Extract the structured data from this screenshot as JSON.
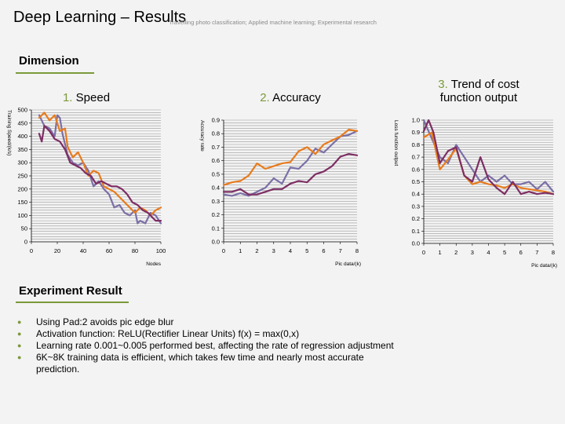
{
  "header": {
    "title": "Deep Learning – Results",
    "subtitle": "Travelling photo classification; Applied machine learning; Experimental research"
  },
  "sections": {
    "dimension": "Dimension",
    "experiment": "Experiment Result"
  },
  "chart_titles": [
    {
      "num": "1.",
      "text": "Speed"
    },
    {
      "num": "2.",
      "text": "Accuracy"
    },
    {
      "num": "3.",
      "text": "Trend of cost function output"
    }
  ],
  "bullets": [
    "Using Pad:2 avoids pic edge blur",
    "Activation function: ReLU(Rectifier Linear Units) f(x) = max(0,x)",
    "Learning rate 0.001~0.005 performed best, affecting the rate of regression adjustment",
    "6K~8K training data is efficient, which takes few time and nearly most accurate prediction."
  ],
  "colors": {
    "series_1": "#7b6fa6",
    "series_2": "#e87b1c",
    "series_3": "#7d2d63",
    "accent": "#7a9a3a"
  },
  "chart_data": [
    {
      "type": "line",
      "title": "Speed",
      "xlabel": "Nodes",
      "ylabel": "Training Speed/(k/s)",
      "xlim": [
        0,
        100
      ],
      "ylim": [
        0,
        500
      ],
      "xticks": [
        0,
        20,
        40,
        60,
        80,
        100
      ],
      "yticks": [
        0,
        50,
        100,
        150,
        200,
        250,
        300,
        350,
        400,
        450,
        500
      ],
      "grid": true,
      "series": [
        {
          "values": [
            [
              6,
              480
            ],
            [
              10,
              440
            ],
            [
              14,
              430
            ],
            [
              18,
              400
            ],
            [
              20,
              480
            ],
            [
              22,
              470
            ],
            [
              24,
              410
            ],
            [
              28,
              330
            ],
            [
              32,
              300
            ],
            [
              36,
              290
            ],
            [
              40,
              300
            ],
            [
              44,
              270
            ],
            [
              48,
              210
            ],
            [
              52,
              230
            ],
            [
              56,
              200
            ],
            [
              60,
              180
            ],
            [
              64,
              130
            ],
            [
              68,
              140
            ],
            [
              72,
              110
            ],
            [
              76,
              100
            ],
            [
              80,
              120
            ],
            [
              82,
              70
            ],
            [
              84,
              80
            ],
            [
              88,
              70
            ],
            [
              92,
              110
            ],
            [
              96,
              100
            ],
            [
              100,
              70
            ]
          ]
        },
        {
          "values": [
            [
              6,
              470
            ],
            [
              10,
              490
            ],
            [
              14,
              460
            ],
            [
              18,
              480
            ],
            [
              22,
              420
            ],
            [
              26,
              430
            ],
            [
              28,
              360
            ],
            [
              32,
              320
            ],
            [
              36,
              340
            ],
            [
              40,
              300
            ],
            [
              44,
              250
            ],
            [
              48,
              270
            ],
            [
              52,
              260
            ],
            [
              56,
              210
            ],
            [
              60,
              200
            ],
            [
              64,
              190
            ],
            [
              68,
              170
            ],
            [
              72,
              150
            ],
            [
              76,
              130
            ],
            [
              80,
              110
            ],
            [
              84,
              130
            ],
            [
              88,
              120
            ],
            [
              92,
              100
            ],
            [
              96,
              120
            ],
            [
              100,
              130
            ]
          ]
        },
        {
          "values": [
            [
              6,
              410
            ],
            [
              8,
              380
            ],
            [
              10,
              440
            ],
            [
              14,
              420
            ],
            [
              18,
              390
            ],
            [
              22,
              380
            ],
            [
              26,
              350
            ],
            [
              30,
              300
            ],
            [
              34,
              290
            ],
            [
              38,
              280
            ],
            [
              42,
              260
            ],
            [
              46,
              250
            ],
            [
              50,
              220
            ],
            [
              54,
              230
            ],
            [
              58,
              220
            ],
            [
              62,
              210
            ],
            [
              66,
              210
            ],
            [
              70,
              200
            ],
            [
              74,
              180
            ],
            [
              78,
              150
            ],
            [
              82,
              140
            ],
            [
              86,
              120
            ],
            [
              90,
              110
            ],
            [
              94,
              90
            ],
            [
              96,
              80
            ],
            [
              100,
              80
            ]
          ]
        }
      ]
    },
    {
      "type": "line",
      "title": "Accuracy",
      "xlabel": "Pic data/(k)",
      "ylabel": "Accuracy rate",
      "xlim": [
        0,
        8
      ],
      "ylim": [
        0,
        0.9
      ],
      "xticks": [
        0,
        1,
        2,
        3,
        4,
        5,
        6,
        7,
        8
      ],
      "yticks": [
        0,
        0.1,
        0.2,
        0.3,
        0.4,
        0.5,
        0.6,
        0.7,
        0.8,
        0.9
      ],
      "grid": true,
      "series": [
        {
          "values": [
            [
              0,
              0.35
            ],
            [
              0.5,
              0.34
            ],
            [
              1,
              0.36
            ],
            [
              1.5,
              0.34
            ],
            [
              2,
              0.37
            ],
            [
              2.5,
              0.4
            ],
            [
              3,
              0.47
            ],
            [
              3.5,
              0.43
            ],
            [
              4,
              0.55
            ],
            [
              4.5,
              0.54
            ],
            [
              5,
              0.6
            ],
            [
              5.5,
              0.69
            ],
            [
              6,
              0.66
            ],
            [
              6.5,
              0.72
            ],
            [
              7,
              0.78
            ],
            [
              7.5,
              0.79
            ],
            [
              8,
              0.82
            ]
          ]
        },
        {
          "values": [
            [
              0,
              0.42
            ],
            [
              0.5,
              0.44
            ],
            [
              1,
              0.45
            ],
            [
              1.5,
              0.49
            ],
            [
              2,
              0.58
            ],
            [
              2.5,
              0.54
            ],
            [
              3,
              0.56
            ],
            [
              3.5,
              0.58
            ],
            [
              4,
              0.59
            ],
            [
              4.5,
              0.67
            ],
            [
              5,
              0.7
            ],
            [
              5.5,
              0.65
            ],
            [
              6,
              0.72
            ],
            [
              6.5,
              0.75
            ],
            [
              7,
              0.78
            ],
            [
              7.5,
              0.83
            ],
            [
              8,
              0.82
            ]
          ]
        },
        {
          "values": [
            [
              0,
              0.37
            ],
            [
              0.5,
              0.37
            ],
            [
              1,
              0.39
            ],
            [
              1.5,
              0.35
            ],
            [
              2,
              0.35
            ],
            [
              2.5,
              0.37
            ],
            [
              3,
              0.39
            ],
            [
              3.5,
              0.39
            ],
            [
              4,
              0.43
            ],
            [
              4.5,
              0.45
            ],
            [
              5,
              0.44
            ],
            [
              5.5,
              0.5
            ],
            [
              6,
              0.52
            ],
            [
              6.5,
              0.56
            ],
            [
              7,
              0.63
            ],
            [
              7.5,
              0.65
            ],
            [
              8,
              0.64
            ]
          ]
        }
      ]
    },
    {
      "type": "line",
      "title": "Trend of cost function output",
      "xlabel": "Pic data/(k)",
      "ylabel": "Loss function output",
      "xlim": [
        0,
        8
      ],
      "ylim": [
        0,
        1.0
      ],
      "xticks": [
        0,
        1,
        2,
        3,
        4,
        5,
        6,
        7,
        8
      ],
      "yticks": [
        0,
        0.1,
        0.2,
        0.3,
        0.4,
        0.5,
        0.6,
        0.7,
        0.8,
        0.9,
        1.0
      ],
      "grid": true,
      "series": [
        {
          "values": [
            [
              0,
              1.0
            ],
            [
              0.5,
              0.85
            ],
            [
              1,
              0.7
            ],
            [
              1.5,
              0.65
            ],
            [
              2,
              0.8
            ],
            [
              2.5,
              0.7
            ],
            [
              3,
              0.6
            ],
            [
              3.5,
              0.5
            ],
            [
              4,
              0.55
            ],
            [
              4.5,
              0.5
            ],
            [
              5,
              0.55
            ],
            [
              5.5,
              0.48
            ],
            [
              6,
              0.48
            ],
            [
              6.5,
              0.5
            ],
            [
              7,
              0.44
            ],
            [
              7.5,
              0.5
            ],
            [
              8,
              0.42
            ]
          ]
        },
        {
          "values": [
            [
              0,
              0.86
            ],
            [
              0.5,
              0.9
            ],
            [
              1,
              0.6
            ],
            [
              1.5,
              0.68
            ],
            [
              2,
              0.77
            ],
            [
              2.5,
              0.55
            ],
            [
              3,
              0.48
            ],
            [
              3.5,
              0.5
            ],
            [
              4,
              0.48
            ],
            [
              4.5,
              0.47
            ],
            [
              5,
              0.45
            ],
            [
              5.5,
              0.48
            ],
            [
              6,
              0.45
            ],
            [
              6.5,
              0.44
            ],
            [
              7,
              0.43
            ],
            [
              7.5,
              0.42
            ],
            [
              8,
              0.4
            ]
          ]
        },
        {
          "values": [
            [
              0,
              0.91
            ],
            [
              0.3,
              1.0
            ],
            [
              0.6,
              0.9
            ],
            [
              1,
              0.65
            ],
            [
              1.5,
              0.75
            ],
            [
              2,
              0.78
            ],
            [
              2.5,
              0.55
            ],
            [
              3,
              0.5
            ],
            [
              3.5,
              0.7
            ],
            [
              4,
              0.52
            ],
            [
              4.5,
              0.45
            ],
            [
              5,
              0.4
            ],
            [
              5.5,
              0.5
            ],
            [
              6,
              0.4
            ],
            [
              6.5,
              0.42
            ],
            [
              7,
              0.4
            ],
            [
              7.5,
              0.41
            ],
            [
              8,
              0.4
            ]
          ]
        }
      ]
    }
  ]
}
